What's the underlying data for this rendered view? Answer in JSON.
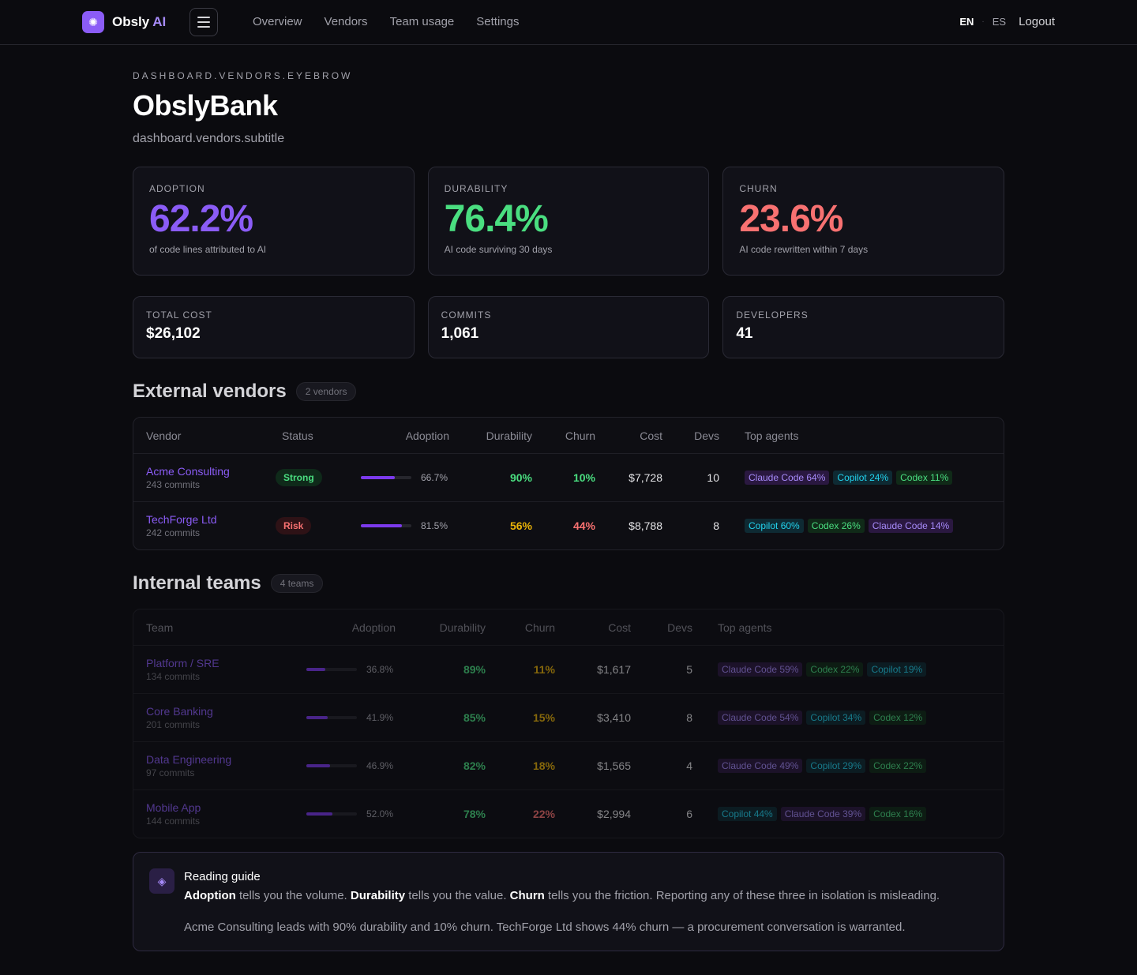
{
  "brand": {
    "name": "Obsly",
    "suffix": "AI",
    "logo_icon": "sparkle-icon"
  },
  "nav": [
    "Overview",
    "Vendors",
    "Team usage",
    "Settings"
  ],
  "lang": {
    "en": "EN",
    "es": "ES",
    "logout": "Logout"
  },
  "page": {
    "eyebrow": "DASHBOARD.VENDORS.EYEBROW",
    "title": "ObslyBank",
    "subtitle": "dashboard.vendors.subtitle"
  },
  "kpis": [
    {
      "label": "ADOPTION",
      "value": "62.2%",
      "desc": "of code lines attributed to AI",
      "color": "#8b5cf6"
    },
    {
      "label": "DURABILITY",
      "value": "76.4%",
      "desc": "AI code surviving 30 days",
      "color": "#4ade80"
    },
    {
      "label": "CHURN",
      "value": "23.6%",
      "desc": "AI code rewritten within 7 days",
      "color": "#f87171"
    }
  ],
  "stats": [
    {
      "label": "TOTAL COST",
      "value": "$26,102"
    },
    {
      "label": "COMMITS",
      "value": "1,061"
    },
    {
      "label": "DEVELOPERS",
      "value": "41"
    }
  ],
  "vendors": {
    "title": "External vendors",
    "count": "2 vendors",
    "headers": {
      "name": "Vendor",
      "status": "Status",
      "adoption": "Adoption",
      "durability": "Durability",
      "churn": "Churn",
      "cost": "Cost",
      "devs": "Devs",
      "agents": "Top agents"
    },
    "rows": [
      {
        "name": "Acme Consulting",
        "commits": "243 commits",
        "status": "Strong",
        "status_type": "strong",
        "adoption": "66.7%",
        "adoption_fraction": 0.667,
        "durability": "90%",
        "durability_color": "green",
        "churn": "10%",
        "churn_color": "green",
        "cost": "$7,728",
        "devs": "10",
        "agents": [
          {
            "label": "Claude Code 64%",
            "color": "purple"
          },
          {
            "label": "Copilot 24%",
            "color": "cyan"
          },
          {
            "label": "Codex 11%",
            "color": "green"
          }
        ]
      },
      {
        "name": "TechForge Ltd",
        "commits": "242 commits",
        "status": "Risk",
        "status_type": "risk",
        "adoption": "81.5%",
        "adoption_fraction": 0.815,
        "durability": "56%",
        "durability_color": "yellow",
        "churn": "44%",
        "churn_color": "red",
        "cost": "$8,788",
        "devs": "8",
        "agents": [
          {
            "label": "Copilot 60%",
            "color": "cyan"
          },
          {
            "label": "Codex 26%",
            "color": "green"
          },
          {
            "label": "Claude Code 14%",
            "color": "purple"
          }
        ]
      }
    ]
  },
  "teams": {
    "title": "Internal teams",
    "count": "4 teams",
    "headers": {
      "name": "Team",
      "adoption": "Adoption",
      "durability": "Durability",
      "churn": "Churn",
      "cost": "Cost",
      "devs": "Devs",
      "agents": "Top agents"
    },
    "rows": [
      {
        "name": "Platform / SRE",
        "commits": "134 commits",
        "adoption": "36.8%",
        "adoption_fraction": 0.368,
        "durability": "89%",
        "durability_color": "green",
        "churn": "11%",
        "churn_color": "yellow",
        "cost": "$1,617",
        "devs": "5",
        "agents": [
          {
            "label": "Claude Code 59%",
            "color": "purple"
          },
          {
            "label": "Codex 22%",
            "color": "green"
          },
          {
            "label": "Copilot 19%",
            "color": "cyan"
          }
        ]
      },
      {
        "name": "Core Banking",
        "commits": "201 commits",
        "adoption": "41.9%",
        "adoption_fraction": 0.419,
        "durability": "85%",
        "durability_color": "green",
        "churn": "15%",
        "churn_color": "yellow",
        "cost": "$3,410",
        "devs": "8",
        "agents": [
          {
            "label": "Claude Code 54%",
            "color": "purple"
          },
          {
            "label": "Copilot 34%",
            "color": "cyan"
          },
          {
            "label": "Codex 12%",
            "color": "green"
          }
        ]
      },
      {
        "name": "Data Engineering",
        "commits": "97 commits",
        "adoption": "46.9%",
        "adoption_fraction": 0.469,
        "durability": "82%",
        "durability_color": "green",
        "churn": "18%",
        "churn_color": "yellow",
        "cost": "$1,565",
        "devs": "4",
        "agents": [
          {
            "label": "Claude Code 49%",
            "color": "purple"
          },
          {
            "label": "Copilot 29%",
            "color": "cyan"
          },
          {
            "label": "Codex 22%",
            "color": "green"
          }
        ]
      },
      {
        "name": "Mobile App",
        "commits": "144 commits",
        "adoption": "52.0%",
        "adoption_fraction": 0.52,
        "durability": "78%",
        "durability_color": "green",
        "churn": "22%",
        "churn_color": "red",
        "cost": "$2,994",
        "devs": "6",
        "agents": [
          {
            "label": "Copilot 44%",
            "color": "cyan"
          },
          {
            "label": "Claude Code 39%",
            "color": "purple"
          },
          {
            "label": "Codex 16%",
            "color": "green"
          }
        ]
      }
    ]
  },
  "guide": {
    "title": "Reading guide",
    "adoption_word": "Adoption",
    "adoption_text": " tells you the volume. ",
    "durability_word": "Durability",
    "durability_text": " tells you the value. ",
    "churn_word": "Churn",
    "churn_text": " tells you the friction. Reporting any of these three in isolation is misleading.",
    "summary": "Acme Consulting leads with 90% durability and 10% churn. TechForge Ltd shows 44% churn — a procurement conversation is warranted.",
    "icon": "layers-icon"
  }
}
